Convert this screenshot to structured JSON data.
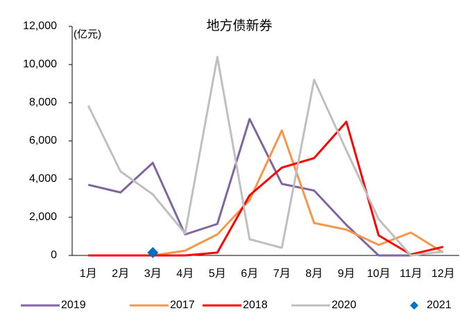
{
  "chart_data": {
    "type": "line",
    "title": "地方债新券",
    "y_label": "(亿元)",
    "categories": [
      "1月",
      "2月",
      "3月",
      "4月",
      "5月",
      "6月",
      "7月",
      "8月",
      "9月",
      "10月",
      "11月",
      "12月"
    ],
    "series": [
      {
        "name": "2019",
        "color": "#8064a2",
        "values": [
          3700,
          3300,
          4850,
          1100,
          1650,
          7150,
          3750,
          3400,
          1600,
          0,
          0,
          null
        ]
      },
      {
        "name": "2017",
        "color": "#f79646",
        "values": [
          0,
          0,
          0,
          250,
          1100,
          2900,
          6550,
          1700,
          1350,
          550,
          1200,
          150
        ]
      },
      {
        "name": "2018",
        "color": "#ff0000",
        "values": [
          0,
          0,
          0,
          0,
          150,
          3150,
          4600,
          5100,
          7000,
          1050,
          50,
          450
        ]
      },
      {
        "name": "2020",
        "color": "#bfbfbf",
        "values": [
          7850,
          4400,
          3200,
          1150,
          10400,
          850,
          400,
          9200,
          5500,
          1900,
          0,
          200
        ]
      },
      {
        "name": "2021",
        "color": "#0070c0",
        "marker": "diamond",
        "values": [
          null,
          null,
          150,
          null,
          null,
          null,
          null,
          null,
          null,
          null,
          null,
          null
        ]
      }
    ],
    "ylim": [
      0,
      12000
    ],
    "yticks": [
      0,
      {
        "value": 2000,
        "label": "2,000"
      },
      {
        "value": 4000,
        "label": "4,000"
      },
      {
        "value": 6000,
        "label": "6,000"
      },
      {
        "value": 8000,
        "label": "8,000"
      },
      {
        "value": 10000,
        "label": "10,000"
      },
      {
        "value": 12000,
        "label": "12,000"
      }
    ],
    "legend": "bottom"
  }
}
